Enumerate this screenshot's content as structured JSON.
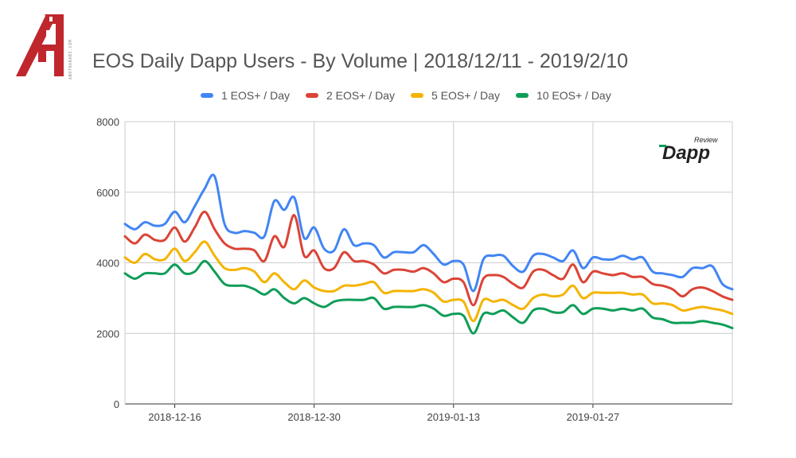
{
  "header": {
    "title": "EOS Daily Dapp Users - By Volume | 2018/12/11 - 2019/2/10",
    "logo_side_text": "ABOTHARABI.COM"
  },
  "badge": {
    "brand": "Dapp",
    "sub": "Review"
  },
  "colors": {
    "series": [
      "#4285f4",
      "#db4437",
      "#f4b400",
      "#0f9d58"
    ],
    "grid": "#cccccc",
    "logo_red": "#c0272d"
  },
  "chart_data": {
    "type": "line",
    "title": "EOS Daily Dapp Users - By Volume | 2018/12/11 - 2019/2/10",
    "xlabel": "",
    "ylabel": "",
    "ylim": [
      0,
      8000
    ],
    "yticks": [
      0,
      2000,
      4000,
      6000,
      8000
    ],
    "xlim": [
      "2018-12-11",
      "2019-02-10"
    ],
    "xticks": [
      "2018-12-16",
      "2018-12-30",
      "2019-01-13",
      "2019-01-27"
    ],
    "grid": true,
    "legend_position": "top",
    "x": [
      "2018-12-11",
      "2018-12-12",
      "2018-12-13",
      "2018-12-14",
      "2018-12-15",
      "2018-12-16",
      "2018-12-17",
      "2018-12-18",
      "2018-12-19",
      "2018-12-20",
      "2018-12-21",
      "2018-12-22",
      "2018-12-23",
      "2018-12-24",
      "2018-12-25",
      "2018-12-26",
      "2018-12-27",
      "2018-12-28",
      "2018-12-29",
      "2018-12-30",
      "2018-12-31",
      "2019-01-01",
      "2019-01-02",
      "2019-01-03",
      "2019-01-04",
      "2019-01-05",
      "2019-01-06",
      "2019-01-07",
      "2019-01-08",
      "2019-01-09",
      "2019-01-10",
      "2019-01-11",
      "2019-01-12",
      "2019-01-13",
      "2019-01-14",
      "2019-01-15",
      "2019-01-16",
      "2019-01-17",
      "2019-01-18",
      "2019-01-19",
      "2019-01-20",
      "2019-01-21",
      "2019-01-22",
      "2019-01-23",
      "2019-01-24",
      "2019-01-25",
      "2019-01-26",
      "2019-01-27",
      "2019-01-28",
      "2019-01-29",
      "2019-01-30",
      "2019-01-31",
      "2019-02-01",
      "2019-02-02",
      "2019-02-03",
      "2019-02-04",
      "2019-02-05",
      "2019-02-06",
      "2019-02-07",
      "2019-02-08",
      "2019-02-09",
      "2019-02-10"
    ],
    "series": [
      {
        "name": "1 EOS+ / Day",
        "color": "#4285f4",
        "values": [
          5100,
          4950,
          5150,
          5050,
          5100,
          5450,
          5150,
          5600,
          6100,
          6450,
          5100,
          4850,
          4900,
          4850,
          4750,
          5750,
          5500,
          5850,
          4700,
          5000,
          4400,
          4350,
          4950,
          4500,
          4550,
          4500,
          4150,
          4300,
          4300,
          4300,
          4500,
          4250,
          3950,
          4050,
          3950,
          3200,
          4100,
          4200,
          4200,
          3900,
          3750,
          4200,
          4250,
          4150,
          4050,
          4350,
          3850,
          4150,
          4100,
          4100,
          4200,
          4100,
          4150,
          3750,
          3700,
          3650,
          3600,
          3850,
          3850,
          3900,
          3400,
          3250
        ]
      },
      {
        "name": "2 EOS+ / Day",
        "color": "#db4437",
        "values": [
          4750,
          4550,
          4800,
          4650,
          4650,
          5000,
          4600,
          5000,
          5450,
          4950,
          4550,
          4400,
          4400,
          4350,
          4050,
          4750,
          4450,
          5350,
          4200,
          4350,
          3850,
          3850,
          4300,
          4050,
          4050,
          3950,
          3700,
          3800,
          3800,
          3750,
          3850,
          3700,
          3450,
          3550,
          3450,
          2800,
          3550,
          3650,
          3600,
          3400,
          3300,
          3750,
          3800,
          3650,
          3550,
          3950,
          3450,
          3750,
          3700,
          3650,
          3700,
          3600,
          3600,
          3400,
          3350,
          3250,
          3050,
          3250,
          3300,
          3200,
          3050,
          2950
        ]
      },
      {
        "name": "5 EOS+ / Day",
        "color": "#f4b400",
        "values": [
          4150,
          4000,
          4250,
          4100,
          4100,
          4400,
          4050,
          4300,
          4600,
          4200,
          3850,
          3800,
          3850,
          3750,
          3450,
          3700,
          3450,
          3250,
          3500,
          3300,
          3200,
          3200,
          3350,
          3350,
          3400,
          3450,
          3150,
          3200,
          3200,
          3200,
          3250,
          3150,
          2900,
          2950,
          2900,
          2350,
          2950,
          2900,
          2950,
          2800,
          2700,
          3000,
          3100,
          3050,
          3100,
          3350,
          3000,
          3150,
          3150,
          3150,
          3150,
          3100,
          3100,
          2850,
          2850,
          2800,
          2650,
          2700,
          2750,
          2700,
          2650,
          2550
        ]
      },
      {
        "name": "10 EOS+ / Day",
        "color": "#0f9d58",
        "values": [
          3700,
          3550,
          3700,
          3700,
          3700,
          3950,
          3700,
          3750,
          4050,
          3750,
          3400,
          3350,
          3350,
          3250,
          3100,
          3250,
          3000,
          2850,
          3000,
          2850,
          2750,
          2900,
          2950,
          2950,
          2950,
          3000,
          2700,
          2750,
          2750,
          2750,
          2800,
          2700,
          2500,
          2550,
          2500,
          2000,
          2550,
          2550,
          2650,
          2450,
          2300,
          2650,
          2700,
          2600,
          2600,
          2800,
          2550,
          2700,
          2700,
          2650,
          2700,
          2650,
          2700,
          2450,
          2400,
          2300,
          2300,
          2300,
          2350,
          2300,
          2250,
          2150
        ]
      }
    ]
  }
}
